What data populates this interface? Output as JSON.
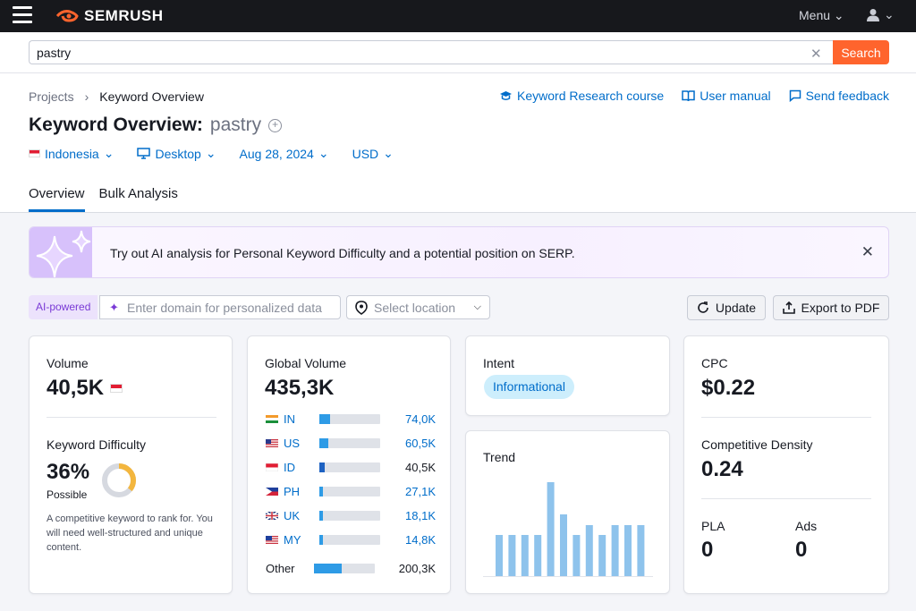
{
  "app": {
    "brand": "SEMRUSH",
    "menu_label": "Menu"
  },
  "search": {
    "query": "pastry",
    "button_label": "Search"
  },
  "breadcrumb": {
    "root": "Projects",
    "current": "Keyword Overview"
  },
  "links": {
    "course": "Keyword Research course",
    "manual": "User manual",
    "feedback": "Send feedback"
  },
  "title": {
    "prefix": "Keyword Overview:",
    "keyword": "pastry"
  },
  "filters": {
    "country": "Indonesia",
    "device": "Desktop",
    "date": "Aug 28, 2024",
    "currency": "USD"
  },
  "tabs": [
    {
      "label": "Overview",
      "active": true
    },
    {
      "label": "Bulk Analysis",
      "active": false
    }
  ],
  "banner": {
    "prefix": "Try out",
    "link": "AI analysis",
    "suffix": "for Personal Keyword Difficulty and a potential position on SERP."
  },
  "controls": {
    "ai_badge": "AI-powered",
    "domain_placeholder": "Enter domain for personalized data",
    "location_placeholder": "Select location",
    "update_label": "Update",
    "export_label": "Export to PDF"
  },
  "volume": {
    "label": "Volume",
    "value": "40,5K"
  },
  "difficulty": {
    "label": "Keyword Difficulty",
    "value": "36%",
    "percent": 36,
    "rating": "Possible",
    "description": "A competitive keyword to rank for. You will need well-structured and unique content.",
    "color": "#f3b63e"
  },
  "global_volume": {
    "label": "Global Volume",
    "value": "435,3K",
    "countries": [
      {
        "code": "IN",
        "value": "74,0K",
        "share": 0.17
      },
      {
        "code": "US",
        "value": "60,5K",
        "share": 0.14
      },
      {
        "code": "ID",
        "value": "40,5K",
        "share": 0.09
      },
      {
        "code": "PH",
        "value": "27,1K",
        "share": 0.06
      },
      {
        "code": "UK",
        "value": "18,1K",
        "share": 0.04
      },
      {
        "code": "MY",
        "value": "14,8K",
        "share": 0.03
      }
    ],
    "other": {
      "label": "Other",
      "value": "200,3K",
      "share": 0.46
    }
  },
  "intent": {
    "label": "Intent",
    "value": "Informational"
  },
  "trend": {
    "label": "Trend",
    "values": [
      0.44,
      0.44,
      0.44,
      0.44,
      1.0,
      0.66,
      0.44,
      0.54,
      0.44,
      0.54,
      0.54,
      0.54
    ],
    "color": "#8ec3ec"
  },
  "cpc": {
    "label": "CPC",
    "value": "$0.22"
  },
  "competitive_density": {
    "label": "Competitive Density",
    "value": "0.24"
  },
  "pla": {
    "label": "PLA",
    "value": "0"
  },
  "ads": {
    "label": "Ads",
    "value": "0"
  },
  "colors": {
    "accent": "#ff642d",
    "link": "#006dca",
    "topbar": "#17181c"
  }
}
